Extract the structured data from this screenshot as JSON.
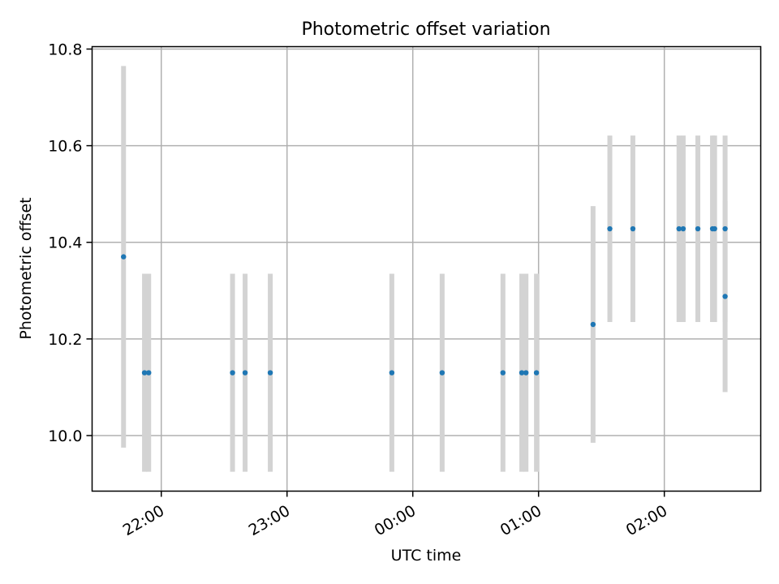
{
  "chart_data": {
    "type": "scatter",
    "title": "Photometric offset variation",
    "xlabel": "UTC time",
    "ylabel": "Photometric offset",
    "x_is_time": true,
    "xlim": [
      "21:27",
      "02:46"
    ],
    "ylim": [
      9.885,
      10.805
    ],
    "grid": true,
    "legend": "none",
    "x_ticks": [
      "22:00",
      "23:00",
      "00:00",
      "01:00",
      "02:00"
    ],
    "y_ticks": [
      10.0,
      10.2,
      10.4,
      10.6,
      10.8
    ],
    "y_tick_labels": [
      "10.0",
      "10.2",
      "10.4",
      "10.6",
      "10.8"
    ],
    "colors": {
      "point": "#1f77b4",
      "errorbar": "#d3d3d3",
      "grid": "#b0b0b0"
    },
    "points": [
      {
        "t": "21:42",
        "y": 10.37,
        "err": 0.395
      },
      {
        "t": "21:52",
        "y": 10.13,
        "err": 0.205
      },
      {
        "t": "21:54",
        "y": 10.13,
        "err": 0.205
      },
      {
        "t": "22:34",
        "y": 10.13,
        "err": 0.205
      },
      {
        "t": "22:40",
        "y": 10.13,
        "err": 0.205
      },
      {
        "t": "22:52",
        "y": 10.13,
        "err": 0.205
      },
      {
        "t": "23:50",
        "y": 10.13,
        "err": 0.205
      },
      {
        "t": "00:14",
        "y": 10.13,
        "err": 0.205
      },
      {
        "t": "00:43",
        "y": 10.13,
        "err": 0.205
      },
      {
        "t": "00:52",
        "y": 10.13,
        "err": 0.205
      },
      {
        "t": "00:54",
        "y": 10.13,
        "err": 0.205
      },
      {
        "t": "00:59",
        "y": 10.13,
        "err": 0.205
      },
      {
        "t": "01:26",
        "y": 10.23,
        "err": 0.245
      },
      {
        "t": "01:34",
        "y": 10.428,
        "err": 0.193
      },
      {
        "t": "01:45",
        "y": 10.428,
        "err": 0.193
      },
      {
        "t": "02:07",
        "y": 10.428,
        "err": 0.193
      },
      {
        "t": "02:09",
        "y": 10.428,
        "err": 0.193
      },
      {
        "t": "02:16",
        "y": 10.428,
        "err": 0.193
      },
      {
        "t": "02:23",
        "y": 10.428,
        "err": 0.193
      },
      {
        "t": "02:24",
        "y": 10.428,
        "err": 0.193
      },
      {
        "t": "02:29",
        "y": 10.428,
        "err": 0.193
      },
      {
        "t": "02:29",
        "y": 10.288,
        "err": 0.198
      }
    ]
  }
}
